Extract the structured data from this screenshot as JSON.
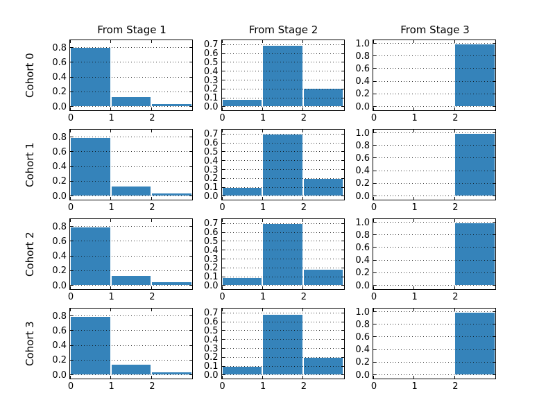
{
  "figure": {
    "background": "#ffffff",
    "bar_color": "#3583ba",
    "bar_edge_color": "#ffffff",
    "grid_color": "#0a0a0a",
    "axis_color": "#000000",
    "text_color": "#000000"
  },
  "chart_data": {
    "type": "bar",
    "title": "",
    "description": "4x3 grid of transition-probability histograms (cohorts vs source stage)",
    "layout": {
      "rows": 4,
      "cols": 3,
      "grid": "horizontal dotted gridlines over bars, ticks on all four spines"
    },
    "x_bins": [
      0,
      1,
      2,
      3
    ],
    "xlim": [
      0,
      3
    ],
    "xtick_labels": [
      "0",
      "1",
      "2"
    ],
    "row_labels": [
      "Cohort 0",
      "Cohort 1",
      "Cohort 2",
      "Cohort 3"
    ],
    "columns": [
      {
        "title": "From Stage 1",
        "ylim": [
          -0.05,
          0.9
        ],
        "ytick_labels": [
          "0.0",
          "0.2",
          "0.4",
          "0.6",
          "0.8"
        ]
      },
      {
        "title": "From Stage 2",
        "ylim": [
          -0.04,
          0.75
        ],
        "ytick_labels": [
          "0.0",
          "0.1",
          "0.2",
          "0.3",
          "0.4",
          "0.5",
          "0.6",
          "0.7"
        ]
      },
      {
        "title": "From Stage 3",
        "ylim": [
          -0.06,
          1.05
        ],
        "ytick_labels": [
          "0.0",
          "0.2",
          "0.4",
          "0.6",
          "0.8",
          "1.0"
        ]
      }
    ],
    "values": [
      [
        [
          0.805,
          0.14,
          0.04
        ],
        [
          0.085,
          0.695,
          0.21
        ],
        [
          0.0,
          0.0,
          1.0
        ]
      ],
      [
        [
          0.8,
          0.14,
          0.04
        ],
        [
          0.1,
          0.7,
          0.2
        ],
        [
          0.0,
          0.0,
          1.0
        ]
      ],
      [
        [
          0.795,
          0.14,
          0.05
        ],
        [
          0.095,
          0.705,
          0.185
        ],
        [
          0.0,
          0.0,
          1.0
        ]
      ],
      [
        [
          0.8,
          0.145,
          0.04
        ],
        [
          0.1,
          0.685,
          0.205
        ],
        [
          0.0,
          0.0,
          0.995
        ]
      ]
    ]
  }
}
